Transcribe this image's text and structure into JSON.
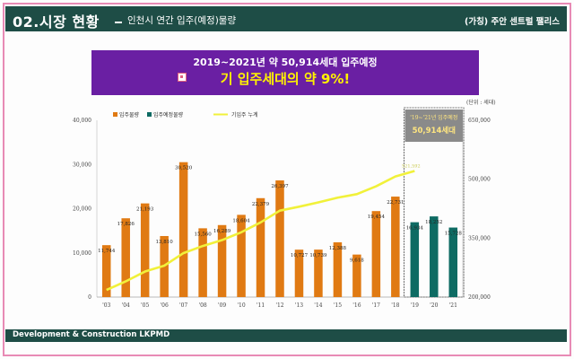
{
  "header": {
    "title": "02.시장 현황",
    "subtitle": "인천시 연간 입주(예정)물량",
    "project": "(가칭) 주안 센트럴 팰리스"
  },
  "banner": {
    "line1": "2019~2021년  약  50,914세대  입주예정",
    "line2": "기 입주세대의 약 9%!"
  },
  "footer": {
    "text": "Development & Construction LKPMD"
  },
  "colors": {
    "header_bg": "#1e4d46",
    "banner_bg": "#6a1fa3",
    "banner_highlight": "#fff200",
    "bar_actual": "#e07a13",
    "bar_planned": "#0e6b63",
    "cumulative_line": "#f1f13a"
  },
  "chart_data": {
    "type": "bar",
    "unit": "(단위 : 세대)",
    "categories": [
      "'03",
      "'04",
      "'05",
      "'06",
      "'07",
      "'08",
      "'09",
      "'10",
      "'11",
      "'12",
      "'13",
      "'14",
      "'15",
      "'16",
      "'17",
      "'18",
      "'19",
      "'20",
      "'21"
    ],
    "series": [
      {
        "name": "입주물량",
        "axis": "left",
        "values": [
          11744,
          17826,
          21193,
          13810,
          30520,
          15560,
          16289,
          18604,
          22379,
          26397,
          10727,
          10739,
          12388,
          9618,
          19454,
          22731,
          null,
          null,
          null
        ],
        "labels": [
          "11,744",
          "17,826",
          "21,193",
          "13,810",
          "30,520",
          "15,560",
          "16,289",
          "18,604",
          "22,379",
          "26,397",
          "10,727",
          "10,739",
          "12,388",
          "9,618",
          "19,454",
          "22,731",
          "",
          "",
          ""
        ]
      },
      {
        "name": "입주예정물량",
        "axis": "left",
        "values": [
          null,
          null,
          null,
          null,
          null,
          null,
          null,
          null,
          null,
          null,
          null,
          null,
          null,
          null,
          null,
          null,
          16934,
          18252,
          15728
        ],
        "labels": [
          "",
          "",
          "",
          "",
          "",
          "",
          "",
          "",
          "",
          "",
          "",
          "",
          "",
          "",
          "",
          "",
          "16,934",
          "18,252",
          "15,728"
        ]
      },
      {
        "name": "기입주 누계",
        "type": "line",
        "axis": "right",
        "values": [
          218000,
          240000,
          265000,
          280000,
          312000,
          330000,
          345000,
          365000,
          390000,
          420000,
          430000,
          441000,
          453000,
          462000,
          482000,
          507000,
          521000,
          null,
          null
        ],
        "end_label": "521,592"
      }
    ],
    "y_left": {
      "min": 0,
      "max": 40000,
      "ticks": [
        "0",
        "10,000",
        "20,000",
        "30,000",
        "40,000"
      ]
    },
    "y_right": {
      "min": 200000,
      "max": 650000,
      "ticks": [
        "200,000",
        "350,000",
        "500,000",
        "650,000"
      ]
    },
    "annotation": {
      "line1": "'19~'21년 입주예정",
      "line2": "50,914세대"
    },
    "legend_position": "top-left"
  }
}
